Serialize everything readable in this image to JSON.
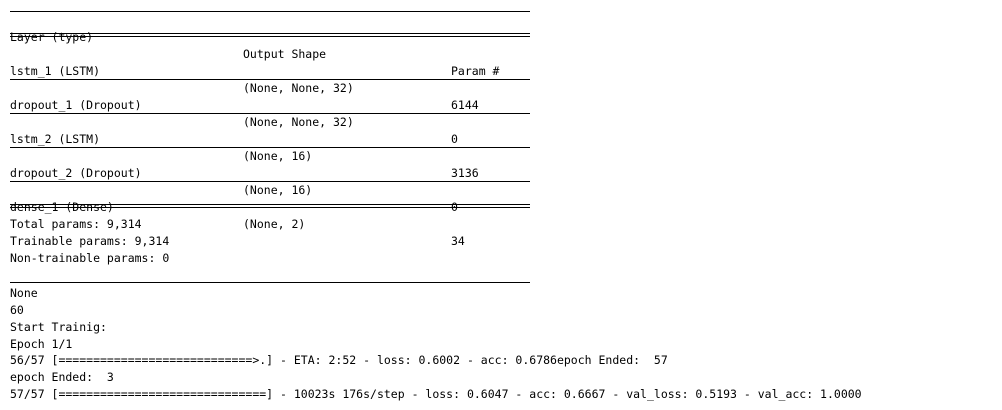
{
  "summary": {
    "headers": [
      "Layer (type)",
      "Output Shape",
      "Param #"
    ],
    "layers": [
      {
        "name": "lstm_1 (LSTM)",
        "shape": "(None, None, 32)",
        "params": "6144"
      },
      {
        "name": "dropout_1 (Dropout)",
        "shape": "(None, None, 32)",
        "params": "0"
      },
      {
        "name": "lstm_2 (LSTM)",
        "shape": "(None, 16)",
        "params": "3136"
      },
      {
        "name": "dropout_2 (Dropout)",
        "shape": "(None, 16)",
        "params": "0"
      },
      {
        "name": "dense_1 (Dense)",
        "shape": "(None, 2)",
        "params": "34"
      }
    ],
    "totals": [
      "Total params: 9,314",
      "Trainable params: 9,314",
      "Non-trainable params: 0"
    ]
  },
  "log": [
    "None",
    "60",
    "Start Trainig:",
    "Epoch 1/1",
    "56/57 [============================>.] - ETA: 2:52 - loss: 0.6002 - acc: 0.6786epoch Ended:  57",
    "epoch Ended:  3",
    "57/57 [==============================] - 10023s 176s/step - loss: 0.6047 - acc: 0.6667 - val_loss: 0.5193 - val_acc: 1.0000"
  ]
}
